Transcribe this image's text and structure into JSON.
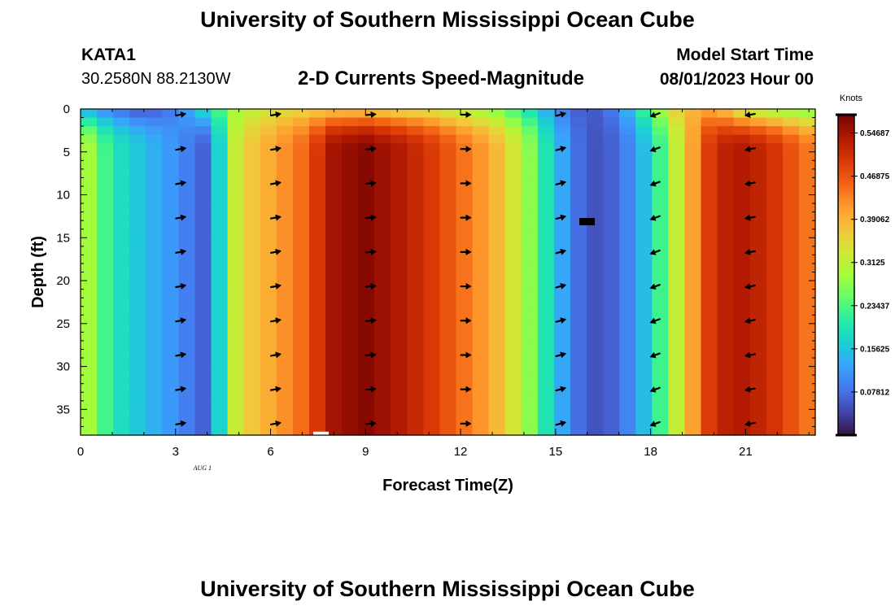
{
  "page": {
    "title": "University of Southern Mississippi Ocean Cube",
    "bottom_title": "University of Southern Mississippi Ocean Cube",
    "station_id": "KATA1",
    "station_coords": "30.2580N  88.2130W",
    "subtitle": "2-D Currents Speed-Magnitude",
    "model_start_label": "Model Start Time",
    "model_start_value": "08/01/2023 Hour 00",
    "date_label": "AUG  1"
  },
  "colors": {
    "ramp": [
      "#30123b",
      "#4145ab",
      "#4675ed",
      "#39a2fc",
      "#1bcfd4",
      "#24eca6",
      "#61fc6c",
      "#a4fc3b",
      "#d1e834",
      "#f3c63a",
      "#fe9b2d",
      "#f36315",
      "#d93806",
      "#b11901",
      "#7a0403"
    ]
  },
  "chart_data": {
    "type": "heatmap",
    "title": "2-D Currents Speed-Magnitude",
    "xlabel": "Forecast Time(Z)",
    "ylabel": "Depth (ft)",
    "xlim": [
      0,
      23.2
    ],
    "ylim": [
      38,
      0
    ],
    "x_ticks": [
      0,
      3,
      6,
      9,
      12,
      15,
      18,
      21
    ],
    "y_ticks": [
      0,
      5,
      10,
      15,
      20,
      25,
      30,
      35
    ],
    "colorbar": {
      "label": "Knots",
      "min": 0.0,
      "max": 0.58,
      "ticks": [
        0.07812,
        0.15625,
        0.23437,
        0.3125,
        0.39062,
        0.46875,
        0.54687
      ],
      "tick_labels": [
        "0.07812",
        "0.15625",
        "0.23437",
        "0.3125",
        "0.39062",
        "0.46875",
        "0.54687"
      ]
    },
    "hours": [
      0,
      1,
      2,
      3,
      4,
      5,
      6,
      7,
      8,
      9,
      10,
      11,
      12,
      13,
      14,
      15,
      16,
      17,
      18,
      19,
      20,
      21,
      22,
      23
    ],
    "surface_speed_knots": [
      0.14,
      0.08,
      0.05,
      0.09,
      0.2,
      0.3,
      0.33,
      0.35,
      0.36,
      0.36,
      0.34,
      0.33,
      0.3,
      0.27,
      0.2,
      0.1,
      0.05,
      0.1,
      0.26,
      0.38,
      0.4,
      0.3,
      0.27,
      0.25
    ],
    "deep_speed_knots": [
      0.32,
      0.2,
      0.15,
      0.11,
      0.06,
      0.35,
      0.4,
      0.45,
      0.55,
      0.57,
      0.54,
      0.5,
      0.45,
      0.4,
      0.3,
      0.15,
      0.05,
      0.07,
      0.17,
      0.35,
      0.52,
      0.54,
      0.5,
      0.44
    ],
    "arrow_hours": [
      3,
      6,
      9,
      12,
      15,
      18,
      21
    ],
    "arrow_depths_ft": [
      0,
      4,
      8,
      12,
      16,
      20,
      24,
      28,
      32,
      36
    ],
    "arrow_directions_deg": [
      10,
      10,
      5,
      0,
      15,
      200,
      190
    ]
  }
}
